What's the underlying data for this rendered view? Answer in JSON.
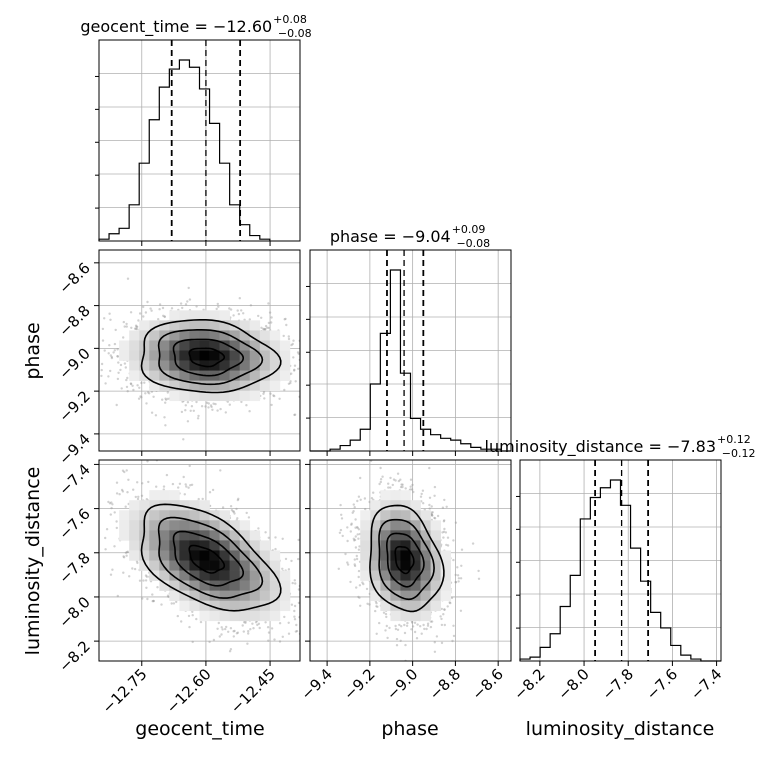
{
  "chart_data": {
    "type": "corner",
    "parameters": [
      "geocent_time",
      "phase",
      "luminosity_distance"
    ],
    "axis_ranges": {
      "geocent_time": [
        -12.85,
        -12.38
      ],
      "phase": [
        -9.48,
        -8.54
      ],
      "luminosity_distance": [
        -8.29,
        -7.38
      ]
    },
    "ticks": {
      "geocent_time": [
        "−12.75",
        "−12.60",
        "−12.45"
      ],
      "geocent_time_values": [
        -12.75,
        -12.6,
        -12.45
      ],
      "phase": [
        "−9.4",
        "−9.2",
        "−9.0",
        "−8.8",
        "−8.6"
      ],
      "phase_values": [
        -9.4,
        -9.2,
        -9.0,
        -8.8,
        -8.6
      ],
      "luminosity_distance": [
        "−8.2",
        "−8.0",
        "−7.8",
        "−7.6",
        "−7.4"
      ],
      "luminosity_distance_values": [
        -8.2,
        -8.0,
        -7.8,
        -7.6,
        -7.4
      ]
    },
    "titles": {
      "geocent_time": {
        "main": "geocent_time = −12.60",
        "upper": "+0.08",
        "lower": "−0.08"
      },
      "phase": {
        "main": "phase = −9.04",
        "upper": "+0.09",
        "lower": "−0.08"
      },
      "luminosity_distance": {
        "main": "luminosity_distance = −7.83",
        "upper": "+0.12",
        "lower": "−0.12"
      }
    },
    "quantiles": {
      "geocent_time": [
        -12.68,
        -12.6,
        -12.52
      ],
      "phase": [
        -9.12,
        -9.04,
        -8.95
      ],
      "luminosity_distance": [
        -7.95,
        -7.83,
        -7.71
      ]
    },
    "histograms": {
      "geocent_time": {
        "edges_start": -12.85,
        "bin_width": 0.0235,
        "counts": [
          1,
          4,
          7,
          20,
          43,
          67,
          85,
          95,
          100,
          96,
          84,
          65,
          43,
          20,
          9,
          3,
          1
        ]
      },
      "phase": {
        "edges_start": -9.48,
        "bin_width": 0.047,
        "counts": [
          0,
          0,
          1,
          3,
          6,
          12,
          37,
          65,
          100,
          43,
          18,
          12,
          9,
          7,
          6,
          4,
          2,
          1,
          1,
          0
        ]
      },
      "luminosity_distance": {
        "edges_start": -8.29,
        "bin_width": 0.0455,
        "counts": [
          1,
          2,
          7,
          14,
          28,
          44,
          73,
          84,
          89,
          93,
          80,
          58,
          41,
          25,
          17,
          8,
          3,
          1,
          0,
          0
        ]
      }
    },
    "gaussian": {
      "mean": [
        -12.6,
        -9.04,
        -7.83
      ],
      "sd": [
        0.08,
        0.085,
        0.12
      ],
      "correlation": {
        "time_phase": -0.1,
        "time_dist": -0.5,
        "phase_dist": -0.2
      }
    },
    "grid": true
  }
}
